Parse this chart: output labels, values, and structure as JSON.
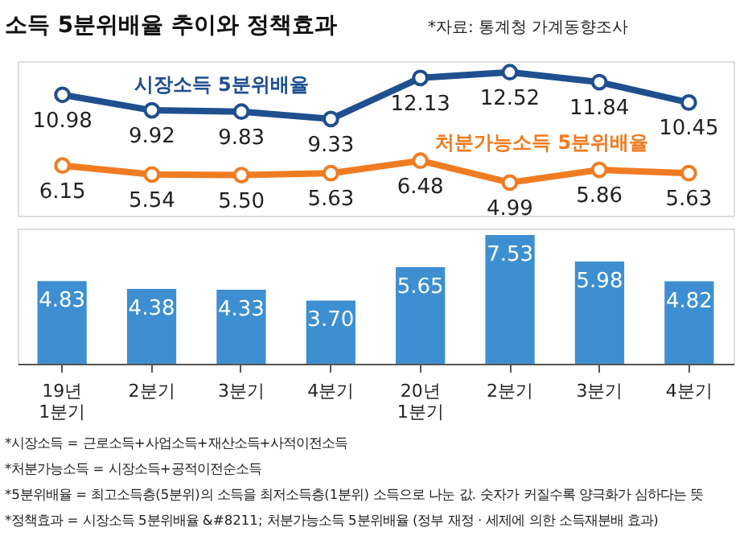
{
  "chart_data": [
    {
      "type": "line",
      "title": "소득 5분위배율 추이와 정책효과",
      "subtitle": "*자료: 통계청 가계동향조사",
      "tick_labels": false,
      "marker": "circle",
      "series": [
        {
          "name": "시장소득 5분위배율",
          "color": "#1f4f8f",
          "values": [
            10.98,
            9.92,
            9.83,
            9.33,
            12.13,
            12.52,
            11.84,
            10.45
          ],
          "value_labels": [
            "10.98",
            "9.92",
            "9.83",
            "9.33",
            "12.13",
            "12.52",
            "11.84",
            "10.45"
          ]
        },
        {
          "name": "처분가능소득 5분위배율",
          "color": "#f07c22",
          "values": [
            6.15,
            5.54,
            5.5,
            5.63,
            6.48,
            4.99,
            5.86,
            5.63
          ],
          "value_labels": [
            "6.15",
            "5.54",
            "5.50",
            "5.63",
            "6.48",
            "4.99",
            "5.86",
            "5.63"
          ]
        }
      ]
    },
    {
      "type": "bar",
      "categories": [
        "19년\n1분기",
        "2분기",
        "3분기",
        "4분기",
        "20년\n1분기",
        "2분기",
        "3분기",
        "4분기"
      ],
      "tick_labels": "x",
      "series": [
        {
          "color": "#3d8fd1",
          "values": [
            4.83,
            4.38,
            4.33,
            3.7,
            5.65,
            7.53,
            5.98,
            4.82
          ],
          "value_labels": [
            "4.83",
            "4.38",
            "4.33",
            "3.70",
            "5.65",
            "7.53",
            "5.98",
            "4.82"
          ]
        }
      ],
      "annotations": [
        "*시장소득 = 근로소득+사업소득+재산소득+사적이전소득",
        "*처분가능소득 = 시장소득+공적이전순소득",
        "*5분위배율 = 최고소득층(5분위)의 소득을 최저소득층(1분위) 소득으로 나눈 값. 숫자가 커질수록 양극화가 심하다는 뜻",
        "*정책효과 = 시장소득 5분위배율 &#8211; 처분가능소득 5분위배율 (정부 재정 · 세제에 의한 소득재분배 효과)"
      ]
    }
  ]
}
